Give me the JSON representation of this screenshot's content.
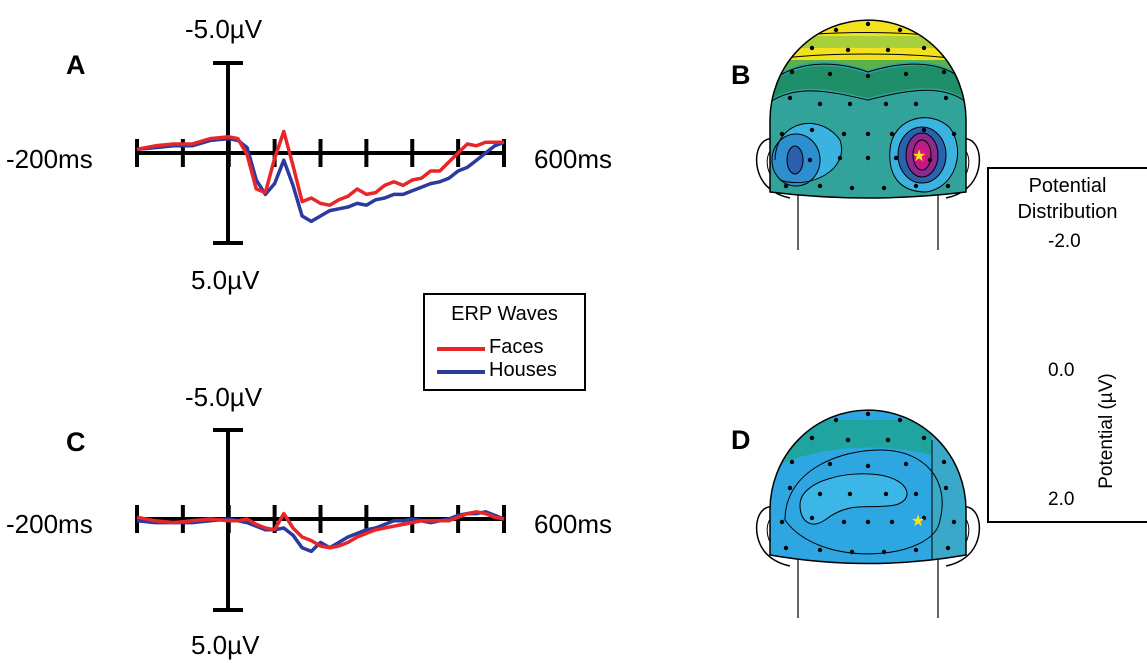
{
  "panels": {
    "A": {
      "letter": "A",
      "y_top_label": "-5.0µV",
      "y_bottom_label": "5.0µV",
      "x_left_label": "-200ms",
      "x_right_label": "600ms"
    },
    "B": {
      "letter": "B"
    },
    "C": {
      "letter": "C",
      "y_top_label": "-5.0µV",
      "y_bottom_label": "5.0µV",
      "x_left_label": "-200ms",
      "x_right_label": "600ms"
    },
    "D": {
      "letter": "D"
    }
  },
  "legend": {
    "title": "ERP Waves",
    "items": [
      {
        "label": "Faces",
        "color": "#e8262a"
      },
      {
        "label": "Houses",
        "color": "#2b3a9c"
      }
    ]
  },
  "colorbar": {
    "title_line1": "Potential",
    "title_line2": "Distribution",
    "tick_top": "-2.0",
    "tick_mid": "0.0",
    "tick_bottom": "2.0",
    "ylabel": "Potential (µV)",
    "colors": [
      "#ffffff",
      "#e2147f",
      "#c0198a",
      "#8c2a8e",
      "#2b62ad",
      "#3b8fd4",
      "#2ea6e2",
      "#3bb6e6",
      "#1f9f9f",
      "#1f8f5a",
      "#2a8d3f",
      "#9bc93b",
      "#ece51a",
      "#f4b31a",
      "#f08a1e",
      "#e21f26",
      "#111111"
    ]
  },
  "chart_data": [
    {
      "type": "line",
      "panel": "A",
      "xlabel": "",
      "ylabel": "",
      "xlim": [
        -200,
        600
      ],
      "ylim": [
        -5.0,
        5.0
      ],
      "y_inverted": true,
      "x": [
        -200,
        -160,
        -120,
        -80,
        -40,
        0,
        20,
        40,
        60,
        80,
        100,
        120,
        140,
        160,
        180,
        200,
        220,
        240,
        260,
        280,
        300,
        320,
        340,
        360,
        380,
        400,
        420,
        440,
        460,
        480,
        500,
        520,
        540,
        560,
        580,
        600
      ],
      "series": [
        {
          "name": "Faces",
          "color": "#e8262a",
          "values": [
            -0.2,
            -0.4,
            -0.5,
            -0.5,
            -0.8,
            -0.9,
            -0.8,
            0.1,
            2.0,
            2.2,
            0.3,
            -1.2,
            0.7,
            2.7,
            2.5,
            2.8,
            2.9,
            2.6,
            2.4,
            2.0,
            2.3,
            2.2,
            1.8,
            1.6,
            1.8,
            1.5,
            1.4,
            1.0,
            1.0,
            0.5,
            0.0,
            -0.5,
            -0.4,
            -0.6,
            -0.6,
            -0.6
          ]
        },
        {
          "name": "Houses",
          "color": "#2b3a9c",
          "values": [
            -0.2,
            -0.3,
            -0.4,
            -0.4,
            -0.7,
            -0.8,
            -0.7,
            -0.3,
            1.5,
            2.3,
            1.7,
            0.4,
            1.8,
            3.5,
            3.8,
            3.5,
            3.2,
            3.1,
            3.0,
            2.8,
            2.9,
            2.6,
            2.5,
            2.3,
            2.3,
            2.1,
            1.9,
            1.7,
            1.6,
            1.4,
            1.0,
            0.8,
            0.4,
            0.0,
            -0.4,
            -0.6
          ]
        }
      ]
    },
    {
      "type": "line",
      "panel": "C",
      "xlabel": "",
      "ylabel": "",
      "xlim": [
        -200,
        600
      ],
      "ylim": [
        -5.0,
        5.0
      ],
      "y_inverted": true,
      "x": [
        -200,
        -160,
        -120,
        -80,
        -40,
        0,
        20,
        40,
        60,
        80,
        100,
        120,
        140,
        160,
        180,
        200,
        220,
        240,
        260,
        280,
        300,
        320,
        340,
        360,
        380,
        400,
        420,
        440,
        460,
        480,
        500,
        520,
        540,
        560,
        580,
        600
      ],
      "series": [
        {
          "name": "Faces",
          "color": "#e8262a",
          "values": [
            -0.1,
            0.1,
            0.2,
            0.1,
            0.0,
            0.1,
            0.1,
            0.0,
            0.3,
            0.5,
            0.6,
            -0.3,
            0.5,
            1.0,
            1.2,
            1.5,
            1.6,
            1.5,
            1.3,
            1.0,
            0.8,
            0.6,
            0.5,
            0.4,
            0.3,
            0.2,
            0.1,
            0.1,
            0.1,
            0.1,
            -0.1,
            -0.3,
            -0.4,
            -0.3,
            -0.1,
            0.0
          ]
        },
        {
          "name": "Houses",
          "color": "#2b3a9c",
          "values": [
            0.1,
            0.2,
            0.2,
            0.2,
            0.1,
            0.0,
            0.1,
            0.2,
            0.4,
            0.6,
            0.6,
            0.5,
            0.9,
            1.6,
            1.8,
            1.3,
            1.6,
            1.3,
            1.0,
            0.8,
            0.6,
            0.5,
            0.3,
            0.1,
            0.1,
            0.0,
            0.1,
            0.2,
            0.1,
            0.0,
            -0.2,
            -0.3,
            -0.3,
            -0.4,
            -0.2,
            0.0
          ]
        }
      ]
    }
  ]
}
